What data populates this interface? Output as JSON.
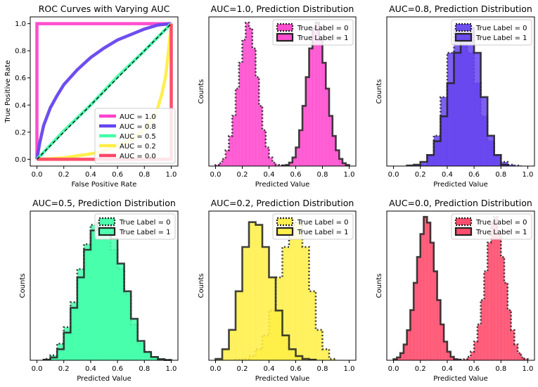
{
  "chart_data": [
    {
      "type": "line",
      "title": "ROC Curves with Varying AUC",
      "xlabel": "False Positive Rate",
      "ylabel": "True Positive Rate",
      "xlim": [
        -0.05,
        1.05
      ],
      "ylim": [
        -0.05,
        1.05
      ],
      "xticks": [
        0.0,
        0.2,
        0.4,
        0.6,
        0.8,
        1.0
      ],
      "yticks": [
        0.0,
        0.2,
        0.4,
        0.6,
        0.8,
        1.0
      ],
      "xtick_labels": [
        "0.0",
        "0.2",
        "0.4",
        "0.6",
        "0.8",
        "1.0"
      ],
      "ytick_labels": [
        "0.0",
        "0.2",
        "0.4",
        "0.6",
        "0.8",
        "1.0"
      ],
      "legend_position": "lower-right",
      "diagonal_reference": {
        "x": [
          0,
          1
        ],
        "y": [
          0,
          1
        ],
        "style": "dashed",
        "color": "#000000"
      },
      "series": [
        {
          "name": "AUC = 1.0",
          "color": "#ff44cc",
          "x": [
            0,
            0,
            1
          ],
          "y": [
            0,
            1,
            1
          ]
        },
        {
          "name": "AUC = 0.8",
          "color": "#6644ee",
          "x": [
            0.0,
            0.02,
            0.05,
            0.1,
            0.15,
            0.2,
            0.3,
            0.4,
            0.5,
            0.6,
            0.7,
            0.8,
            0.9,
            1.0
          ],
          "y": [
            0.0,
            0.12,
            0.25,
            0.38,
            0.47,
            0.55,
            0.66,
            0.75,
            0.82,
            0.88,
            0.92,
            0.96,
            0.99,
            1.0
          ]
        },
        {
          "name": "AUC = 0.5",
          "color": "#44ffaa",
          "x": [
            0.0,
            0.2,
            0.4,
            0.6,
            0.8,
            1.0
          ],
          "y": [
            0.0,
            0.21,
            0.4,
            0.61,
            0.8,
            1.0
          ]
        },
        {
          "name": "AUC = 0.2",
          "color": "#ffee44",
          "x": [
            0.0,
            0.2,
            0.4,
            0.5,
            0.6,
            0.7,
            0.8,
            0.85,
            0.9,
            0.93,
            0.96,
            0.98,
            1.0
          ],
          "y": [
            0.0,
            0.01,
            0.04,
            0.06,
            0.1,
            0.14,
            0.22,
            0.28,
            0.38,
            0.48,
            0.62,
            0.8,
            1.0
          ]
        },
        {
          "name": "AUC = 0.0",
          "color": "#ff4466",
          "x": [
            0,
            1,
            1
          ],
          "y": [
            0,
            0,
            1
          ]
        }
      ]
    },
    {
      "type": "bar",
      "subtype": "histogram",
      "title": "AUC=1.0, Prediction Distribution",
      "xlabel": "Predicted Value",
      "ylabel": "Counts",
      "xlim": [
        -0.05,
        1.05
      ],
      "xticks": [
        0.0,
        0.2,
        0.4,
        0.6,
        0.8,
        1.0
      ],
      "xtick_labels": [
        "0.0",
        "0.2",
        "0.4",
        "0.6",
        "0.8",
        "1.0"
      ],
      "ymax": 520,
      "legend_position": "top-right",
      "series": [
        {
          "name": "True Label = 0",
          "color": "#ff44cc",
          "linestyle": "dotted",
          "edges": [
            0.0,
            0.025,
            0.05,
            0.075,
            0.1,
            0.125,
            0.15,
            0.175,
            0.2,
            0.225,
            0.25,
            0.275,
            0.3,
            0.325,
            0.35,
            0.375,
            0.4,
            0.425,
            0.45,
            0.475,
            0.5
          ],
          "counts": [
            4,
            10,
            25,
            55,
            105,
            175,
            270,
            360,
            440,
            500,
            480,
            410,
            310,
            210,
            125,
            65,
            30,
            12,
            4,
            2
          ]
        },
        {
          "name": "True Label = 1",
          "color": "#ff44cc",
          "linestyle": "solid",
          "edges": [
            0.5,
            0.525,
            0.55,
            0.575,
            0.6,
            0.625,
            0.65,
            0.675,
            0.7,
            0.725,
            0.75,
            0.775,
            0.8,
            0.825,
            0.85,
            0.875,
            0.9,
            0.925,
            0.95,
            0.975,
            1.0
          ],
          "counts": [
            2,
            4,
            12,
            30,
            65,
            125,
            210,
            310,
            410,
            480,
            500,
            440,
            360,
            270,
            175,
            105,
            55,
            25,
            10,
            4
          ]
        }
      ]
    },
    {
      "type": "bar",
      "subtype": "histogram",
      "title": "AUC=0.8, Prediction Distribution",
      "xlabel": "Predicted Value",
      "ylabel": "Counts",
      "xlim": [
        -0.05,
        1.05
      ],
      "xticks": [
        0.0,
        0.2,
        0.4,
        0.6,
        0.8,
        1.0
      ],
      "xtick_labels": [
        "0.0",
        "0.2",
        "0.4",
        "0.6",
        "0.8",
        "1.0"
      ],
      "ymax": 540,
      "legend_position": "top-right",
      "series": [
        {
          "name": "True Label = 0",
          "color": "#6644ee",
          "linestyle": "dotted",
          "edges": [
            0.2,
            0.25,
            0.3,
            0.35,
            0.4,
            0.45,
            0.5,
            0.55,
            0.6,
            0.65,
            0.7,
            0.75,
            0.8,
            0.85,
            0.9,
            0.95
          ],
          "counts": [
            5,
            40,
            110,
            250,
            410,
            500,
            490,
            410,
            300,
            180,
            90,
            40,
            15,
            5,
            2
          ]
        },
        {
          "name": "True Label = 1",
          "color": "#6644ee",
          "linestyle": "solid",
          "edges": [
            0.1,
            0.15,
            0.2,
            0.25,
            0.3,
            0.35,
            0.4,
            0.45,
            0.5,
            0.55,
            0.6,
            0.65,
            0.7,
            0.75,
            0.8,
            0.85
          ],
          "counts": [
            2,
            5,
            15,
            40,
            90,
            180,
            300,
            410,
            490,
            500,
            410,
            250,
            110,
            40,
            5
          ]
        }
      ]
    },
    {
      "type": "bar",
      "subtype": "histogram",
      "title": "AUC=0.5, Prediction Distribution",
      "xlabel": "Predicted Value",
      "ylabel": "Counts",
      "xlim": [
        -0.05,
        1.05
      ],
      "xticks": [
        0.0,
        0.2,
        0.4,
        0.6,
        0.8,
        1.0
      ],
      "xtick_labels": [
        "0.0",
        "0.2",
        "0.4",
        "0.6",
        "0.8",
        "1.0"
      ],
      "ymax": 540,
      "legend_position": "top-right",
      "series": [
        {
          "name": "True Label = 0",
          "color": "#44ffaa",
          "linestyle": "dotted",
          "edges": [
            0.05,
            0.1,
            0.15,
            0.2,
            0.25,
            0.3,
            0.35,
            0.4,
            0.45,
            0.5,
            0.55,
            0.6,
            0.65,
            0.7,
            0.75,
            0.8,
            0.85,
            0.9,
            0.95,
            1.0
          ],
          "counts": [
            5,
            18,
            60,
            120,
            210,
            330,
            420,
            490,
            500,
            470,
            400,
            330,
            240,
            130,
            60,
            30,
            12,
            4,
            1
          ]
        },
        {
          "name": "True Label = 1",
          "color": "#44ffaa",
          "linestyle": "solid",
          "edges": [
            0.05,
            0.1,
            0.15,
            0.2,
            0.25,
            0.3,
            0.35,
            0.4,
            0.45,
            0.5,
            0.55,
            0.6,
            0.65,
            0.7,
            0.75,
            0.8,
            0.85,
            0.9,
            0.95,
            1.0
          ],
          "counts": [
            2,
            10,
            40,
            100,
            190,
            300,
            400,
            470,
            500,
            490,
            440,
            350,
            250,
            150,
            70,
            30,
            12,
            4,
            1
          ]
        }
      ]
    },
    {
      "type": "bar",
      "subtype": "histogram",
      "title": "AUC=0.2, Prediction Distribution",
      "xlabel": "Predicted Value",
      "ylabel": "Counts",
      "xlim": [
        -0.05,
        1.05
      ],
      "xticks": [
        0.0,
        0.2,
        0.4,
        0.6,
        0.8,
        1.0
      ],
      "xtick_labels": [
        "0.0",
        "0.2",
        "0.4",
        "0.6",
        "0.8",
        "1.0"
      ],
      "ymax": 540,
      "legend_position": "top-right",
      "series": [
        {
          "name": "True Label = 0",
          "color": "#ffee44",
          "linestyle": "dotted",
          "edges": [
            0.15,
            0.2,
            0.25,
            0.3,
            0.35,
            0.4,
            0.45,
            0.5,
            0.55,
            0.6,
            0.65,
            0.7,
            0.75,
            0.8,
            0.85,
            0.9
          ],
          "counts": [
            2,
            5,
            15,
            40,
            90,
            180,
            300,
            410,
            490,
            500,
            410,
            250,
            110,
            40,
            5
          ]
        },
        {
          "name": "True Label = 1",
          "color": "#ffee44",
          "linestyle": "solid",
          "edges": [
            0.0,
            0.05,
            0.1,
            0.15,
            0.2,
            0.25,
            0.3,
            0.35,
            0.4,
            0.45,
            0.5,
            0.55,
            0.6,
            0.65,
            0.7,
            0.75
          ],
          "counts": [
            5,
            40,
            110,
            250,
            410,
            500,
            490,
            410,
            300,
            180,
            90,
            40,
            15,
            5,
            2
          ]
        }
      ]
    },
    {
      "type": "bar",
      "subtype": "histogram",
      "title": "AUC=0.0, Prediction Distribution",
      "xlabel": "Predicted Value",
      "ylabel": "Counts",
      "xlim": [
        -0.05,
        1.05
      ],
      "xticks": [
        0.0,
        0.2,
        0.4,
        0.6,
        0.8,
        1.0
      ],
      "xtick_labels": [
        "0.0",
        "0.2",
        "0.4",
        "0.6",
        "0.8",
        "1.0"
      ],
      "ymax": 520,
      "legend_position": "top-right",
      "series": [
        {
          "name": "True Label = 0",
          "color": "#ff4466",
          "linestyle": "dotted",
          "edges": [
            0.5,
            0.525,
            0.55,
            0.575,
            0.6,
            0.625,
            0.65,
            0.675,
            0.7,
            0.725,
            0.75,
            0.775,
            0.8,
            0.825,
            0.85,
            0.875,
            0.9,
            0.925,
            0.95,
            0.975,
            1.0
          ],
          "counts": [
            2,
            4,
            12,
            30,
            65,
            125,
            210,
            310,
            410,
            480,
            500,
            440,
            360,
            270,
            175,
            105,
            55,
            25,
            10,
            4
          ]
        },
        {
          "name": "True Label = 1",
          "color": "#ff4466",
          "linestyle": "solid",
          "edges": [
            0.0,
            0.025,
            0.05,
            0.075,
            0.1,
            0.125,
            0.15,
            0.175,
            0.2,
            0.225,
            0.25,
            0.275,
            0.3,
            0.325,
            0.35,
            0.375,
            0.4,
            0.425,
            0.45,
            0.475,
            0.5
          ],
          "counts": [
            4,
            10,
            25,
            55,
            105,
            175,
            270,
            360,
            440,
            500,
            480,
            410,
            310,
            210,
            125,
            65,
            30,
            12,
            4,
            2
          ]
        }
      ]
    }
  ]
}
